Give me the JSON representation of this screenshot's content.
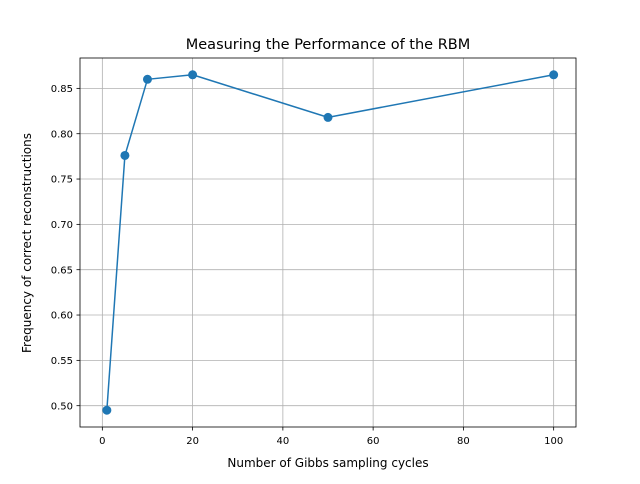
{
  "chart_data": {
    "type": "line",
    "title": "Measuring the Performance of the RBM",
    "xlabel": "Number of Gibbs sampling cycles",
    "ylabel": "Frequency of correct reconstructions",
    "xlim": [
      -4.95,
      104.95
    ],
    "ylim": [
      0.4765,
      0.8835
    ],
    "x_ticks": [
      0,
      20,
      40,
      60,
      80,
      100
    ],
    "x_tick_labels": [
      "0",
      "20",
      "40",
      "60",
      "80",
      "100"
    ],
    "y_ticks": [
      0.5,
      0.55,
      0.6,
      0.65,
      0.7,
      0.75,
      0.8,
      0.85
    ],
    "y_tick_labels": [
      "0.50",
      "0.55",
      "0.60",
      "0.65",
      "0.70",
      "0.75",
      "0.80",
      "0.85"
    ],
    "grid": true,
    "marker": "circle",
    "series": [
      {
        "color": "#1f77b4",
        "x": [
          1,
          5,
          10,
          20,
          50,
          100
        ],
        "y": [
          0.495,
          0.776,
          0.86,
          0.865,
          0.818,
          0.865
        ]
      }
    ]
  }
}
